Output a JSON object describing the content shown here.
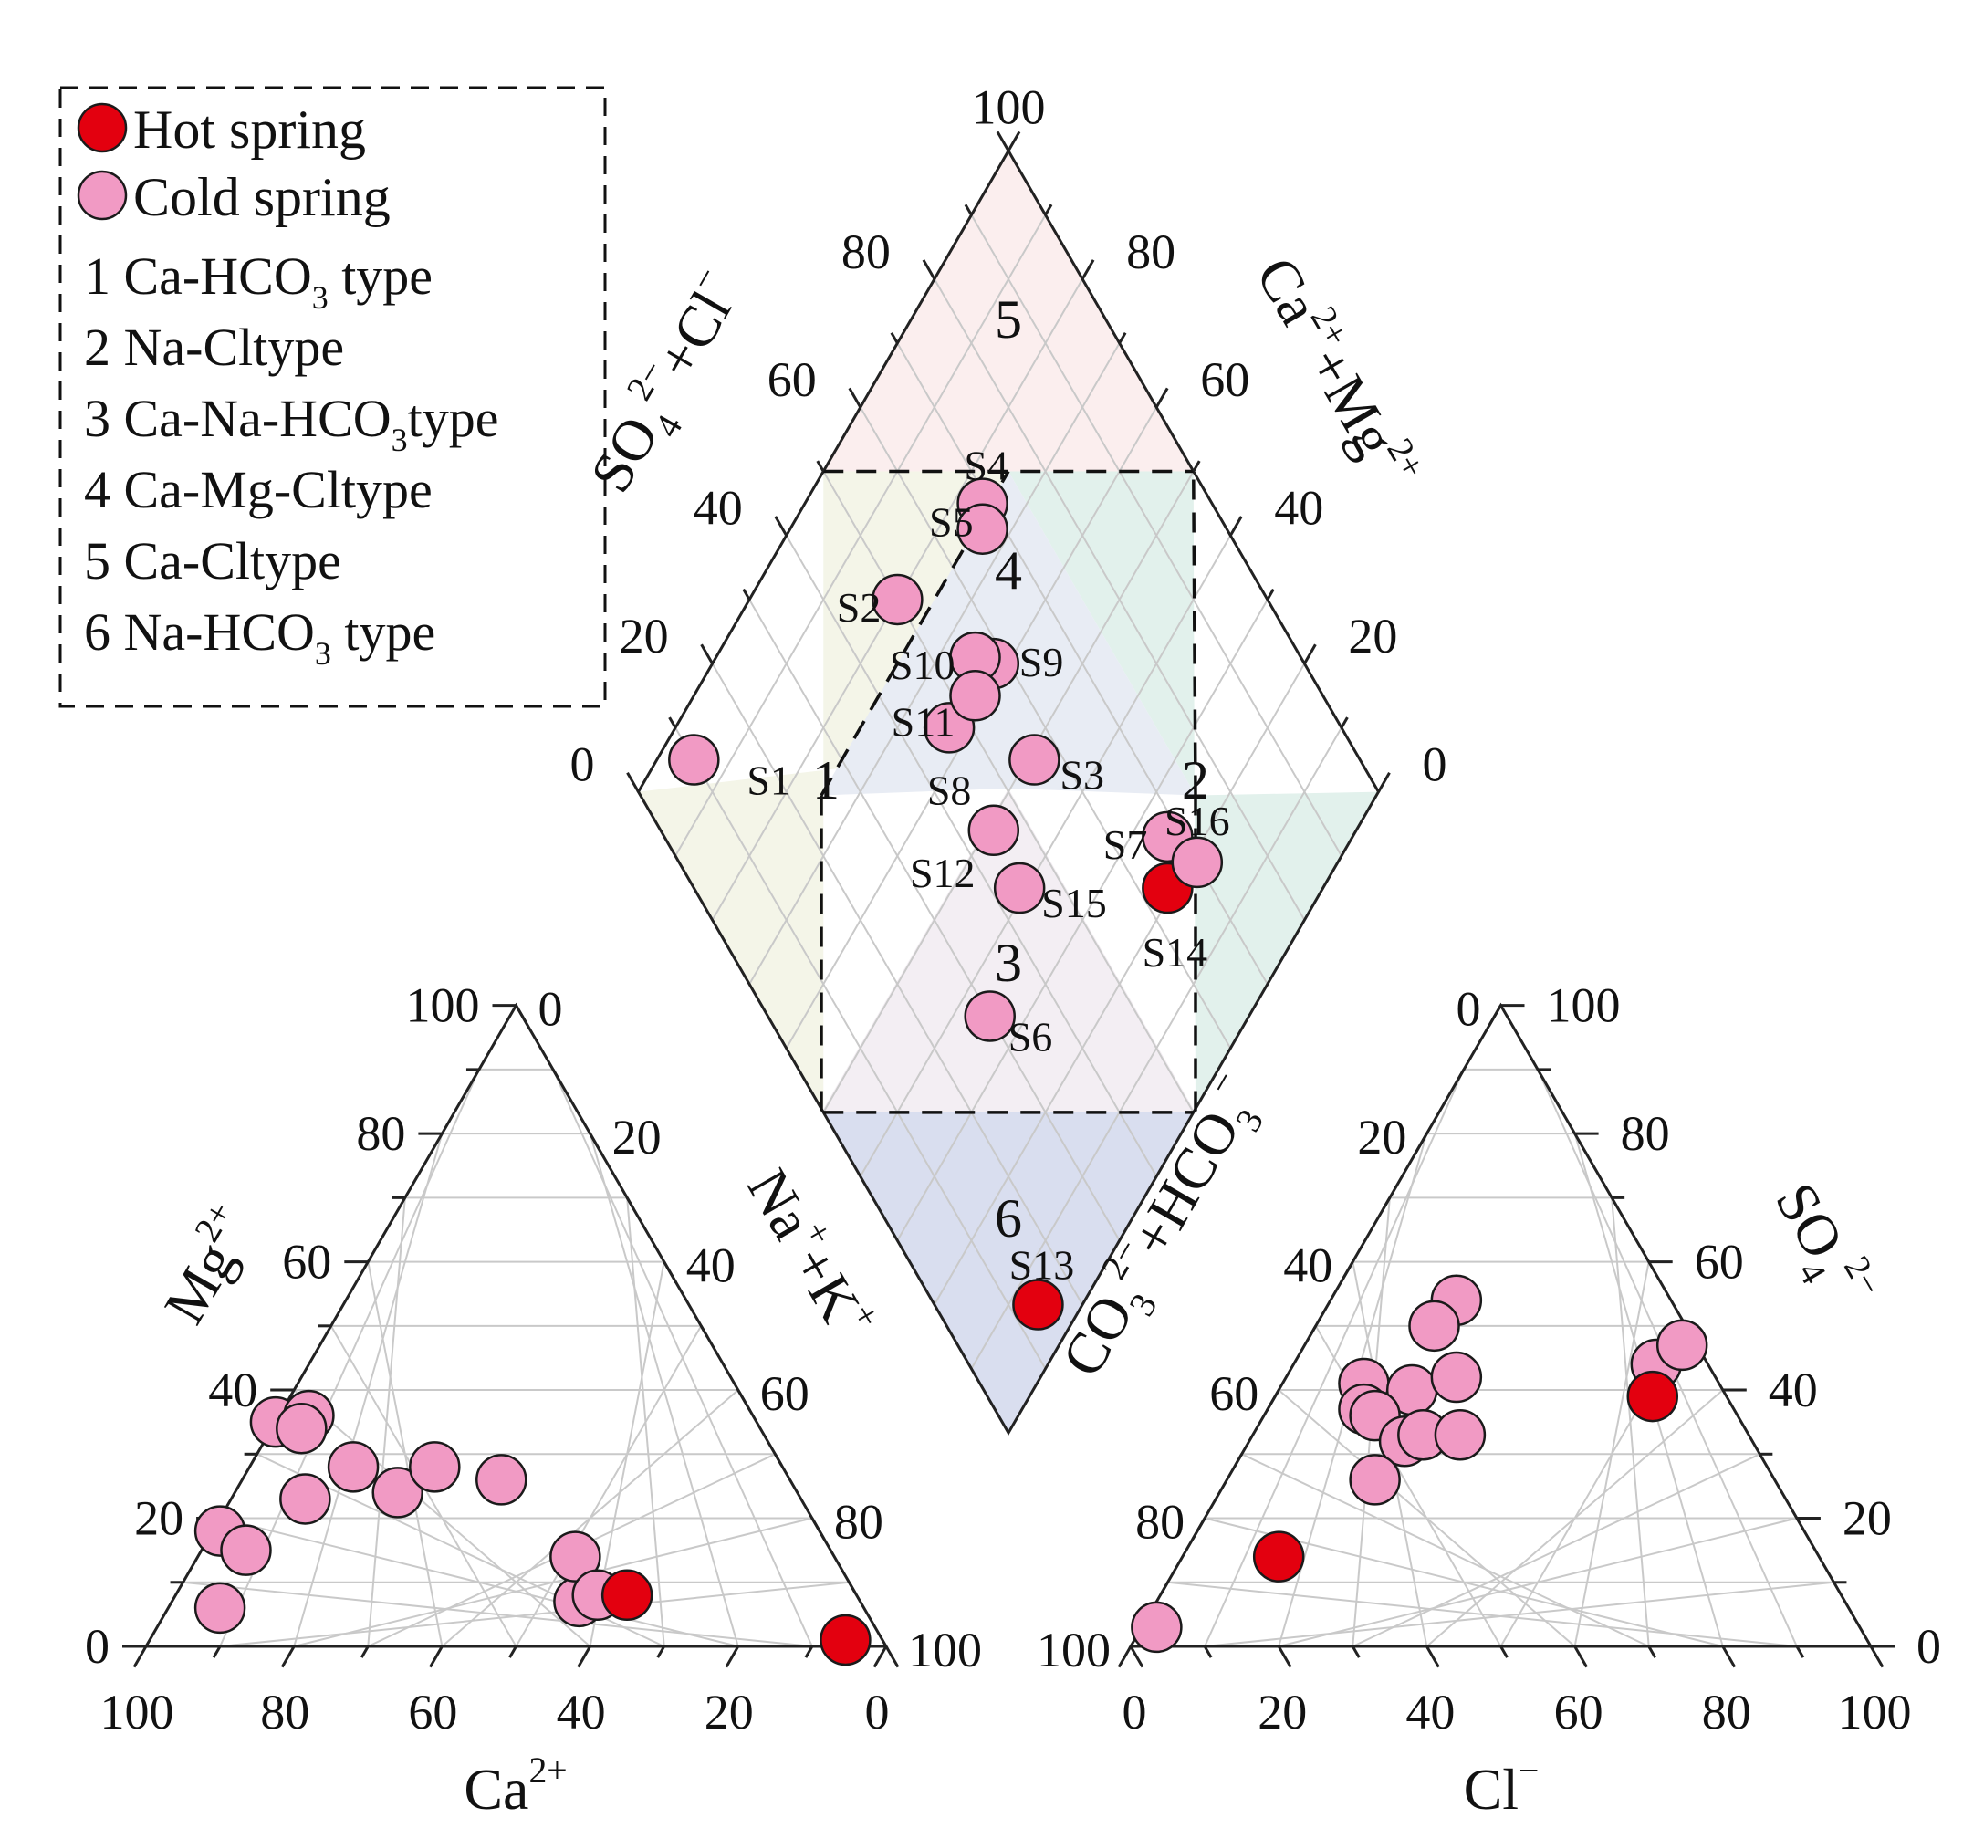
{
  "colors": {
    "hot": "#e3000f",
    "cold": "#f19ac4",
    "marker_edge": "#1a1a1a",
    "region1": "#f4f5e8",
    "region2": "#e2f1ec",
    "region3": "#f3eef3",
    "region4": "#e8ecf4",
    "region5": "#fbeeee",
    "region6": "#d9deef"
  },
  "chart_data": {
    "type": "scatter",
    "subtype": "piper-diagram",
    "legend": {
      "placement": "top-left",
      "markers": [
        {
          "key": "hot",
          "label": "Hot spring"
        },
        {
          "key": "cold",
          "label": "Cold spring"
        }
      ],
      "types": [
        {
          "n": "1",
          "t1": "Ca-HCO",
          "sub": "3",
          "t2": " type"
        },
        {
          "n": "2",
          "t1": "Na-Cltype",
          "sub": "",
          "t2": ""
        },
        {
          "n": "3",
          "t1": "Ca-Na-HCO",
          "sub": "3",
          "t2": "type"
        },
        {
          "n": "4",
          "t1": "Ca-Mg-Cltype",
          "sub": "",
          "t2": ""
        },
        {
          "n": "5",
          "t1": "Ca-Cltype",
          "sub": "",
          "t2": ""
        },
        {
          "n": "6",
          "t1": "Na-HCO",
          "sub": "3",
          "t2": " type"
        }
      ]
    },
    "region_labels": [
      "1",
      "2",
      "3",
      "4",
      "5",
      "6"
    ],
    "ticks": [
      "0",
      "20",
      "40",
      "60",
      "80",
      "100"
    ],
    "axes": {
      "cation_mg": {
        "main": "Mg",
        "sup": "2+"
      },
      "cation_nak": {
        "main": "Na",
        "sup1": "+",
        "mid": "+K",
        "sup2": "+"
      },
      "cation_ca": {
        "main": "Ca",
        "sup": "2+"
      },
      "anion_co3": {
        "a": "CO",
        "sub1": "3",
        "sup1": "2−",
        "b": "+HCO",
        "sub2": "3",
        "sup2": "−"
      },
      "anion_so4": {
        "a": "SO",
        "sub": "4",
        "sup": "2−"
      },
      "anion_cl": {
        "a": "Cl",
        "sup": "−"
      },
      "diamond_left": {
        "a": "SO",
        "sub": "4",
        "sup1": "2−",
        "b": "+Cl",
        "sup2": "−"
      },
      "diamond_right": {
        "a": "Ca",
        "sup1": "2+",
        "b": "+Mg",
        "sup2": "2+"
      }
    },
    "cations": [
      {
        "type": "cold",
        "ca": 87,
        "mg": 6
      },
      {
        "type": "cold",
        "ca": 81,
        "mg": 18
      },
      {
        "type": "cold",
        "ca": 79,
        "mg": 15
      },
      {
        "type": "cold",
        "ca": 65,
        "mg": 35
      },
      {
        "type": "cold",
        "ca": 60,
        "mg": 36
      },
      {
        "type": "cold",
        "ca": 62,
        "mg": 34
      },
      {
        "type": "cold",
        "ca": 58,
        "mg": 28
      },
      {
        "type": "cold",
        "ca": 67,
        "mg": 23
      },
      {
        "type": "cold",
        "ca": 54,
        "mg": 24
      },
      {
        "type": "cold",
        "ca": 47,
        "mg": 28
      },
      {
        "type": "cold",
        "ca": 39,
        "mg": 26
      },
      {
        "type": "cold",
        "ca": 38,
        "mg": 7
      },
      {
        "type": "cold",
        "ca": 35,
        "mg": 14
      },
      {
        "type": "cold",
        "ca": 35,
        "mg": 8
      },
      {
        "type": "hot",
        "ca": 31,
        "mg": 8
      },
      {
        "type": "hot",
        "ca": 5,
        "mg": 1
      }
    ],
    "anions": [
      {
        "type": "cold",
        "cl": 2,
        "so4": 3
      },
      {
        "type": "hot",
        "cl": 13,
        "so4": 14
      },
      {
        "type": "cold",
        "cl": 17,
        "so4": 54
      },
      {
        "type": "cold",
        "cl": 16,
        "so4": 50
      },
      {
        "type": "cold",
        "cl": 11,
        "so4": 41
      },
      {
        "type": "cold",
        "cl": 18,
        "so4": 40
      },
      {
        "type": "cold",
        "cl": 23,
        "so4": 42
      },
      {
        "type": "cold",
        "cl": 13,
        "so4": 37
      },
      {
        "type": "cold",
        "cl": 15,
        "so4": 36
      },
      {
        "type": "cold",
        "cl": 21,
        "so4": 32
      },
      {
        "type": "cold",
        "cl": 23,
        "so4": 33
      },
      {
        "type": "cold",
        "cl": 28,
        "so4": 33
      },
      {
        "type": "cold",
        "cl": 20,
        "so4": 26
      },
      {
        "type": "cold",
        "cl": 49,
        "so4": 44
      },
      {
        "type": "cold",
        "cl": 51,
        "so4": 47
      },
      {
        "type": "hot",
        "cl": 51,
        "so4": 39
      }
    ],
    "diamond_samples": [
      {
        "id": "S1",
        "type": "cold",
        "cl_so4": 10,
        "ca_mg": 95
      },
      {
        "id": "S2",
        "type": "cold",
        "cl_so4": 50,
        "ca_mg": 80
      },
      {
        "id": "S3",
        "type": "cold",
        "cl_so4": 56,
        "ca_mg": 49
      },
      {
        "id": "S4",
        "type": "cold",
        "cl_so4": 69,
        "ca_mg": 76
      },
      {
        "id": "S5",
        "type": "cold",
        "cl_so4": 67,
        "ca_mg": 74
      },
      {
        "id": "S6",
        "type": "cold",
        "cl_so4": 30,
        "ca_mg": 35
      },
      {
        "id": "S7",
        "type": "cold",
        "cl_so4": 68,
        "ca_mg": 25
      },
      {
        "id": "S8",
        "type": "cold",
        "cl_so4": 47,
        "ca_mg": 63
      },
      {
        "id": "S9",
        "type": "cold",
        "cl_so4": 58,
        "ca_mg": 62
      },
      {
        "id": "S10",
        "type": "cold",
        "cl_so4": 56,
        "ca_mg": 65
      },
      {
        "id": "S11",
        "type": "cold",
        "cl_so4": 53,
        "ca_mg": 62
      },
      {
        "id": "S12",
        "type": "cold",
        "cl_so4": 45,
        "ca_mg": 49
      },
      {
        "id": "S13",
        "type": "hot",
        "cl_so4": 14,
        "ca_mg": 6
      },
      {
        "id": "S14",
        "type": "hot",
        "cl_so4": 64,
        "ca_mg": 21
      },
      {
        "id": "S15",
        "type": "cold",
        "cl_so4": 44,
        "ca_mg": 41
      },
      {
        "id": "S16",
        "type": "cold",
        "cl_so4": 70,
        "ca_mg": 19
      }
    ]
  }
}
